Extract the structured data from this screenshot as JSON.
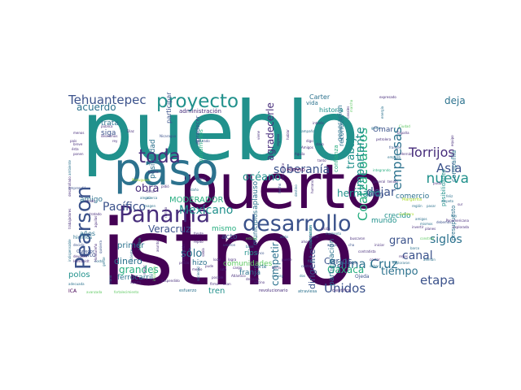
{
  "palette": [
    "#440154",
    "#472d7b",
    "#3b528b",
    "#2c728e",
    "#21918c",
    "#28ae80",
    "#5ec962",
    "#addc30",
    "#fde725"
  ],
  "words": [
    {
      "t": "istmo",
      "c": 0,
      "rot": 0
    },
    {
      "t": "pueblo",
      "c": 4,
      "rot": 0
    },
    {
      "t": "puerto",
      "c": 0,
      "rot": 0
    },
    {
      "t": "paso",
      "c": 3,
      "rot": 0
    },
    {
      "t": "Panamá",
      "c": 1,
      "rot": 0
    },
    {
      "t": "desarrollo",
      "c": 2,
      "rot": 0
    },
    {
      "t": "proyecto",
      "c": 4,
      "rot": 0
    },
    {
      "t": "Pearson",
      "c": 2,
      "rot": -90
    },
    {
      "t": "toda",
      "c": 1,
      "rot": 0
    },
    {
      "t": "Tehuantepec",
      "c": 2,
      "rot": 0
    },
    {
      "t": "Coatzacoalcos",
      "c": 5,
      "rot": -90
    },
    {
      "t": "Pacífico",
      "c": 2,
      "rot": 0
    },
    {
      "t": "Mexicano",
      "c": 4,
      "rot": 0
    },
    {
      "t": "soberanía",
      "c": 2,
      "rot": 0
    },
    {
      "t": "importante",
      "c": 4,
      "rot": -90
    },
    {
      "t": "empresas",
      "c": 3,
      "rot": -90
    },
    {
      "t": "Torrijos",
      "c": 1,
      "rot": 0
    },
    {
      "t": "Asia",
      "c": 2,
      "rot": 0
    },
    {
      "t": "deja",
      "c": 3,
      "rot": 0
    },
    {
      "t": "nueva",
      "c": 4,
      "rot": 0
    },
    {
      "t": "Salina Cruz",
      "c": 3,
      "rot": 0
    },
    {
      "t": "Unidos",
      "c": 2,
      "rot": 0
    },
    {
      "t": "etapa",
      "c": 2,
      "rot": 0
    },
    {
      "t": "canal",
      "c": 2,
      "rot": 0
    },
    {
      "t": "siglos",
      "c": 3,
      "rot": 0
    },
    {
      "t": "gran",
      "c": 2,
      "rot": 0
    },
    {
      "t": "tiempo",
      "c": 3,
      "rot": 0
    },
    {
      "t": "trabajo",
      "c": 4,
      "rot": -90
    },
    {
      "t": "acuerdo",
      "c": 3,
      "rot": 0
    },
    {
      "t": "obra",
      "c": 1,
      "rot": 0
    },
    {
      "t": "grandes",
      "c": 5,
      "rot": 0
    },
    {
      "t": "sólo",
      "c": 3,
      "rot": 0
    },
    {
      "t": "Veracruz",
      "c": 2,
      "rot": 0
    },
    {
      "t": "océano",
      "c": 4,
      "rot": 0
    },
    {
      "t": "agradecerle",
      "c": 1,
      "rot": -90
    },
    {
      "t": "dejar",
      "c": 2,
      "rot": 0
    },
    {
      "t": "hermano",
      "c": 4,
      "rot": 0
    },
    {
      "t": "competir",
      "c": 3,
      "rot": -90
    },
    {
      "t": "dirigente",
      "c": 2,
      "rot": -90
    },
    {
      "t": "Carlos",
      "c": 2,
      "rot": 0
    },
    {
      "t": "Oaxaca",
      "c": 5,
      "rot": 0
    },
    {
      "t": "comunidades",
      "c": 6,
      "rot": 0
    },
    {
      "t": "MODERADOR",
      "c": 5,
      "rot": 0
    },
    {
      "t": "dinero",
      "c": 3,
      "rot": 0
    },
    {
      "t": "polos",
      "c": 4,
      "rot": 0
    },
    {
      "t": "ferrocarril",
      "c": 3,
      "rot": 0
    },
    {
      "t": "siga",
      "c": 2,
      "rot": 0
    },
    {
      "t": "trata",
      "c": 3,
      "rot": 0
    },
    {
      "t": "posibilidad",
      "c": 3,
      "rot": -90
    },
    {
      "t": "participación",
      "c": 3,
      "rot": -90
    },
    {
      "t": "comercio",
      "c": 3,
      "rot": 0
    },
    {
      "t": "crecido",
      "c": 4,
      "rot": 0
    },
    {
      "t": "mundo",
      "c": 4,
      "rot": 0
    },
    {
      "t": "bien",
      "c": 2,
      "rot": 0
    },
    {
      "t": "aplauso",
      "c": 3,
      "rot": -90
    },
    {
      "t": "franja",
      "c": 3,
      "rot": 0
    },
    {
      "t": "tren",
      "c": 4,
      "rot": 0
    },
    {
      "t": "hizo",
      "c": 3,
      "rot": 0
    },
    {
      "t": "primer",
      "c": 3,
      "rot": 0
    },
    {
      "t": "amigo",
      "c": 3,
      "rot": 0
    },
    {
      "t": "éxito",
      "c": 2,
      "rot": 0
    },
    {
      "t": "años",
      "c": 3,
      "rot": 0
    },
    {
      "t": "acto",
      "c": 2,
      "rot": 0
    },
    {
      "t": "ríos",
      "c": 4,
      "rot": 0
    },
    {
      "t": "mismo",
      "c": 5,
      "rot": 0
    },
    {
      "t": "municipios",
      "c": 3,
      "rot": -90
    },
    {
      "t": "confianza",
      "c": 5,
      "rot": -90
    },
    {
      "t": "historia",
      "c": 4,
      "rot": 0
    },
    {
      "t": "vida",
      "c": 3,
      "rot": 0
    },
    {
      "t": "Carter",
      "c": 3,
      "rot": 0
    },
    {
      "t": "Omar",
      "c": 2,
      "rot": 0
    },
    {
      "t": "generación",
      "c": 3,
      "rot": -90
    },
    {
      "t": "reconocer",
      "c": 3,
      "rot": -90
    },
    {
      "t": "administración",
      "c": 1,
      "rot": 0
    },
    {
      "t": "participar",
      "c": 2,
      "rot": -90
    },
    {
      "t": "agradecer",
      "c": 2,
      "rot": -90
    },
    {
      "t": "panameños",
      "c": 5,
      "rot": -90
    },
    {
      "t": "posibilidades",
      "c": 4,
      "rot": -90
    },
    {
      "t": "compañía",
      "c": 3,
      "rot": -90
    },
    {
      "t": "presupuesto",
      "c": 3,
      "rot": -90
    },
    {
      "t": "Himno",
      "c": 0,
      "rot": 0
    },
    {
      "t": "corte",
      "c": 3,
      "rot": 0
    },
    {
      "t": "Ojeda",
      "c": 2,
      "rot": 0
    },
    {
      "t": "revolucionario",
      "c": 1,
      "rot": 0
    },
    {
      "t": "atraviesa",
      "c": 3,
      "rot": 0
    },
    {
      "t": "científico",
      "c": 1,
      "rot": 0
    },
    {
      "t": "esfuerzo",
      "c": 3,
      "rot": 0
    },
    {
      "t": "ICA",
      "c": 0,
      "rot": 0
    },
    {
      "t": "adecuada",
      "c": 3,
      "rot": 0
    },
    {
      "t": "avanzada",
      "c": 6,
      "rot": 0
    },
    {
      "t": "fortalecimiento",
      "c": 6,
      "rot": 0
    },
    {
      "t": "Humboldt",
      "c": 1,
      "rot": 0
    },
    {
      "t": "devolver",
      "c": 1,
      "rot": 0
    },
    {
      "t": "decidir",
      "c": 2,
      "rot": 0
    },
    {
      "t": "hicimos",
      "c": 3,
      "rot": 0
    },
    {
      "t": "Corredor",
      "c": 2,
      "rot": 0
    },
    {
      "t": "costo",
      "c": 3,
      "rot": 0
    },
    {
      "t": "exploración",
      "c": 4,
      "rot": -90
    },
    {
      "t": "capacidades",
      "c": 3,
      "rot": -90
    },
    {
      "t": "personajes",
      "c": 2,
      "rot": 0
    },
    {
      "t": "contratista",
      "c": 1,
      "rot": 0
    },
    {
      "t": "exploraron",
      "c": 3,
      "rot": 0
    },
    {
      "t": "alemán",
      "c": 3,
      "rot": 0
    },
    {
      "t": "petrolera",
      "c": 1,
      "rot": 0
    },
    {
      "t": "Hernán",
      "c": 1,
      "rot": 0
    },
    {
      "t": "expresado",
      "c": 1,
      "rot": 0
    },
    {
      "t": "España",
      "c": 1,
      "rot": 0
    },
    {
      "t": "empezó",
      "c": 3,
      "rot": 0
    },
    {
      "t": "francés",
      "c": 2,
      "rot": 0
    },
    {
      "t": "integrando",
      "c": 5,
      "rot": 0
    },
    {
      "t": "general",
      "c": 1,
      "rot": 0
    },
    {
      "t": "tenido",
      "c": 1,
      "rot": 0
    },
    {
      "t": "gusto",
      "c": 3,
      "rot": 0
    },
    {
      "t": "Ciudad",
      "c": 6,
      "rot": 0
    },
    {
      "t": "Margarita",
      "c": 7,
      "rot": 0
    },
    {
      "t": "región",
      "c": 3,
      "rot": 0
    },
    {
      "t": "pasar",
      "c": 3,
      "rot": 0
    },
    {
      "t": "reyes",
      "c": 1,
      "rot": 0
    },
    {
      "t": "contar",
      "c": 1,
      "rot": 0
    },
    {
      "t": "saber",
      "c": 3,
      "rot": 0
    },
    {
      "t": "Atlántico",
      "c": 1,
      "rot": 0
    },
    {
      "t": "posible",
      "c": 1,
      "rot": 0
    },
    {
      "t": "firma",
      "c": 1,
      "rot": 0
    },
    {
      "t": "usan",
      "c": 1,
      "rot": 0
    },
    {
      "t": "logra",
      "c": 1,
      "rot": 0
    },
    {
      "t": "final",
      "c": 3,
      "rot": 0
    },
    {
      "t": "base",
      "c": 3,
      "rot": 0
    },
    {
      "t": "cinco",
      "c": 2,
      "rot": 0
    },
    {
      "t": "estaba",
      "c": 6,
      "rot": 0
    },
    {
      "t": "atrás",
      "c": 3,
      "rot": 0
    },
    {
      "t": "ahora",
      "c": 1,
      "rot": 0
    },
    {
      "t": "unieron",
      "c": 2,
      "rot": 0
    },
    {
      "t": "apoyo",
      "c": 2,
      "rot": 0
    },
    {
      "t": "modo",
      "c": 1,
      "rot": 0
    },
    {
      "t": "cha",
      "c": 2,
      "rot": 0
    },
    {
      "t": "buscaron",
      "c": 1,
      "rot": 0
    },
    {
      "t": "iniciar",
      "c": 1,
      "rot": 0
    },
    {
      "t": "construir",
      "c": 6,
      "rot": 0
    },
    {
      "t": "feliz",
      "c": 3,
      "rot": 0
    },
    {
      "t": "respeto",
      "c": 3,
      "rot": 0
    },
    {
      "t": "amigos",
      "c": 3,
      "rot": 0
    },
    {
      "t": "barco",
      "c": 3,
      "rot": 0
    },
    {
      "t": "visión",
      "c": 1,
      "rot": 0
    },
    {
      "t": "momento",
      "c": 3,
      "rot": 0
    },
    {
      "t": "carretera",
      "c": 7,
      "rot": 0
    },
    {
      "t": "mismos",
      "c": 3,
      "rot": 0
    },
    {
      "t": "debemos",
      "c": 2,
      "rot": 0
    },
    {
      "t": "invertir",
      "c": 1,
      "rot": 0
    },
    {
      "t": "planes",
      "c": 1,
      "rot": 0
    },
    {
      "t": "Panamericana",
      "c": 1,
      "rot": 0
    },
    {
      "t": "explorada",
      "c": 1,
      "rot": 0
    },
    {
      "t": "pudo",
      "c": 1,
      "rot": 0
    },
    {
      "t": "hoy",
      "c": 3,
      "rot": 0
    },
    {
      "t": "sur",
      "c": 1,
      "rot": 0
    },
    {
      "t": "tanto",
      "c": 1,
      "rot": 0
    },
    {
      "t": "digo",
      "c": 1,
      "rot": 0
    },
    {
      "t": "claro",
      "c": 1,
      "rot": 0
    },
    {
      "t": "Aguila",
      "c": 1,
      "rot": 0
    },
    {
      "t": "Amigos",
      "c": 1,
      "rot": 0
    },
    {
      "t": "campaña",
      "c": 3,
      "rot": 0
    },
    {
      "t": "interés",
      "c": 1,
      "rot": 0
    },
    {
      "t": "Nicaragua",
      "c": 2,
      "rot": 0
    },
    {
      "t": "pública",
      "c": 1,
      "rot": 0
    },
    {
      "t": "deseamos",
      "c": 1,
      "rot": 0
    },
    {
      "t": "rey",
      "c": 1,
      "rot": 0
    },
    {
      "t": "breve",
      "c": 1,
      "rot": 0
    },
    {
      "t": "menos",
      "c": 1,
      "rot": 0
    },
    {
      "t": "país",
      "c": 1,
      "rot": 0
    },
    {
      "t": "ésta",
      "c": 1,
      "rot": 0
    },
    {
      "t": "Portuguesa",
      "c": 7,
      "rot": 0
    },
    {
      "t": "pidió",
      "c": 1,
      "rot": 0
    },
    {
      "t": "daño",
      "c": 3,
      "rot": 0
    },
    {
      "t": "saludo",
      "c": 1,
      "rot": 0
    },
    {
      "t": "saturado",
      "c": 2,
      "rot": 0
    },
    {
      "t": "acerca",
      "c": 3,
      "rot": 0
    },
    {
      "t": "alegría",
      "c": 3,
      "rot": 0
    },
    {
      "t": "imagen",
      "c": 3,
      "rot": 0
    },
    {
      "t": "zona",
      "c": 1,
      "rot": 0
    },
    {
      "t": "buena",
      "c": 1,
      "rot": 0
    },
    {
      "t": "ponen",
      "c": 1,
      "rot": 0
    },
    {
      "t": "rápido",
      "c": 1,
      "rot": 0
    },
    {
      "t": "tratado",
      "c": 1,
      "rot": 0
    },
    {
      "t": "emprendió",
      "c": 2,
      "rot": 0
    },
    {
      "t": "repito",
      "c": 1,
      "rot": 0
    },
    {
      "t": "frente",
      "c": 1,
      "rot": 0
    },
    {
      "t": "precio",
      "c": 1,
      "rot": 0
    },
    {
      "t": "medio",
      "c": 1,
      "rot": 0
    },
    {
      "t": "suspendido",
      "c": 1,
      "rot": 0
    },
    {
      "t": "aporta",
      "c": 1,
      "rot": 0
    },
    {
      "t": "Diaz",
      "c": 1,
      "rot": 0
    },
    {
      "t": "Amuay",
      "c": 3,
      "rot": 0
    },
    {
      "t": "tierra",
      "c": 1,
      "rot": 0
    },
    {
      "t": "puede",
      "c": 1,
      "rot": 0
    },
    {
      "t": "centro",
      "c": 2,
      "rot": 0
    },
    {
      "t": "dos",
      "c": 3,
      "rot": 0
    },
    {
      "t": "vecino",
      "c": 1,
      "rot": 0
    },
    {
      "t": "decisión",
      "c": 1,
      "rot": 0
    },
    {
      "t": "cargo",
      "c": 1,
      "rot": 0
    },
    {
      "t": "ruta",
      "c": 1,
      "rot": 0
    },
    {
      "t": "pude",
      "c": 1,
      "rot": 0
    },
    {
      "t": "local",
      "c": 1,
      "rot": 0
    },
    {
      "t": "indispensable",
      "c": 3,
      "rot": -90
    },
    {
      "t": "desarrollado",
      "c": 1,
      "rot": -90
    },
    {
      "t": "ambiente",
      "c": 3,
      "rot": -90
    },
    {
      "t": "trabajadores",
      "c": 1,
      "rot": -90
    },
    {
      "t": "Hondureño",
      "c": 1,
      "rot": -90
    },
    {
      "t": "aguilas",
      "c": 1,
      "rot": -90
    },
    {
      "t": "quisiera",
      "c": 2,
      "rot": -90
    },
    {
      "t": "gente",
      "c": 3,
      "rot": -90
    },
    {
      "t": "mano",
      "c": 3,
      "rot": -90
    },
    {
      "t": "naciente",
      "c": 3,
      "rot": -90
    },
    {
      "t": "mejor",
      "c": 1,
      "rot": -90
    },
    {
      "t": "iniciativa",
      "c": 6,
      "rot": -90
    },
    {
      "t": "sociedad",
      "c": 3,
      "rot": -90
    },
    {
      "t": "sabía",
      "c": 1,
      "rot": -90
    },
    {
      "t": "ampliación",
      "c": 1,
      "rot": -90
    },
    {
      "t": "nombre",
      "c": 5,
      "rot": -90
    },
    {
      "t": "asunto",
      "c": 1,
      "rot": -90
    },
    {
      "t": "rumbo",
      "c": 1,
      "rot": -90
    },
    {
      "t": "destino",
      "c": 3,
      "rot": -90
    },
    {
      "t": "humano",
      "c": 1,
      "rot": -90
    },
    {
      "t": "hecho",
      "c": 2,
      "rot": -90
    },
    {
      "t": "presidente",
      "c": 1,
      "rot": -90
    },
    {
      "t": "regreso",
      "c": 1,
      "rot": -90
    },
    {
      "t": "hablar",
      "c": 1,
      "rot": -90
    },
    {
      "t": "viene",
      "c": 1,
      "rot": -90
    },
    {
      "t": "marcha",
      "c": 6,
      "rot": -90
    },
    {
      "t": "canales",
      "c": 1,
      "rot": -90
    },
    {
      "t": "energía",
      "c": 3,
      "rot": -90
    },
    {
      "t": "equipo",
      "c": 1,
      "rot": -90
    }
  ]
}
